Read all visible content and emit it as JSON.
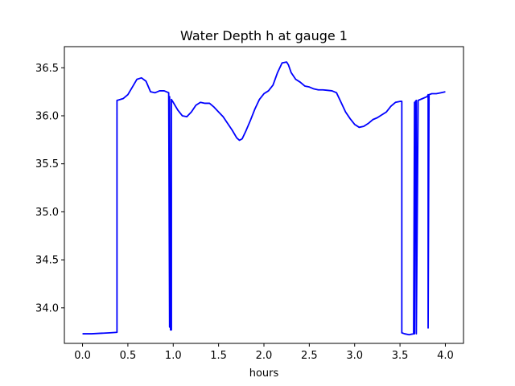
{
  "chart_data": {
    "type": "line",
    "title": "Water Depth h at gauge 1",
    "xlabel": "hours",
    "ylabel": "",
    "xlim": [
      -0.2,
      4.2
    ],
    "ylim": [
      33.63,
      36.72
    ],
    "xticks": [
      0.0,
      0.5,
      1.0,
      1.5,
      2.0,
      2.5,
      3.0,
      3.5,
      4.0
    ],
    "xtick_labels": [
      "0.0",
      "0.5",
      "1.0",
      "1.5",
      "2.0",
      "2.5",
      "3.0",
      "3.5",
      "4.0"
    ],
    "yticks": [
      34.0,
      34.5,
      35.0,
      35.5,
      36.0,
      36.5
    ],
    "ytick_labels": [
      "34.0",
      "34.5",
      "35.0",
      "35.5",
      "36.0",
      "36.5"
    ],
    "grid": false,
    "series": [
      {
        "color": "#0000ff",
        "x": [
          0.0,
          0.1,
          0.2,
          0.3,
          0.38,
          0.38,
          0.4,
          0.45,
          0.5,
          0.55,
          0.6,
          0.65,
          0.7,
          0.75,
          0.8,
          0.85,
          0.9,
          0.95,
          0.96,
          0.96,
          0.97,
          0.98,
          0.98,
          1.0,
          1.05,
          1.1,
          1.15,
          1.2,
          1.25,
          1.3,
          1.35,
          1.4,
          1.45,
          1.5,
          1.55,
          1.6,
          1.65,
          1.7,
          1.73,
          1.76,
          1.8,
          1.85,
          1.9,
          1.95,
          2.0,
          2.05,
          2.1,
          2.15,
          2.2,
          2.25,
          2.27,
          2.3,
          2.35,
          2.4,
          2.45,
          2.5,
          2.55,
          2.6,
          2.65,
          2.7,
          2.75,
          2.8,
          2.85,
          2.9,
          2.95,
          3.0,
          3.05,
          3.1,
          3.15,
          3.2,
          3.25,
          3.3,
          3.35,
          3.4,
          3.45,
          3.5,
          3.52,
          3.52,
          3.55,
          3.6,
          3.65,
          3.66,
          3.66,
          3.67,
          3.68,
          3.68,
          3.7,
          3.75,
          3.8,
          3.81,
          3.81,
          3.82,
          3.82,
          3.85,
          3.9,
          3.95,
          4.0
        ],
        "y": [
          33.73,
          33.73,
          33.735,
          33.74,
          33.745,
          36.16,
          36.165,
          36.18,
          36.22,
          36.3,
          36.38,
          36.395,
          36.36,
          36.25,
          36.24,
          36.26,
          36.26,
          36.24,
          33.8,
          36.2,
          33.77,
          33.77,
          36.17,
          36.14,
          36.06,
          36.0,
          35.99,
          36.04,
          36.11,
          36.14,
          36.13,
          36.13,
          36.09,
          36.04,
          35.99,
          35.92,
          35.85,
          35.77,
          35.745,
          35.76,
          35.84,
          35.95,
          36.07,
          36.17,
          36.23,
          36.26,
          36.32,
          36.45,
          36.55,
          36.56,
          36.53,
          36.45,
          36.38,
          36.35,
          36.31,
          36.3,
          36.28,
          36.27,
          36.27,
          36.265,
          36.26,
          36.24,
          36.14,
          36.04,
          35.97,
          35.91,
          35.88,
          35.89,
          35.92,
          35.96,
          35.98,
          36.01,
          36.04,
          36.1,
          36.14,
          36.15,
          36.15,
          33.74,
          33.73,
          33.72,
          33.73,
          36.14,
          33.73,
          36.15,
          36.16,
          33.73,
          36.16,
          36.18,
          36.2,
          36.22,
          33.79,
          36.22,
          36.22,
          36.23,
          36.23,
          36.24,
          36.25
        ]
      }
    ]
  }
}
